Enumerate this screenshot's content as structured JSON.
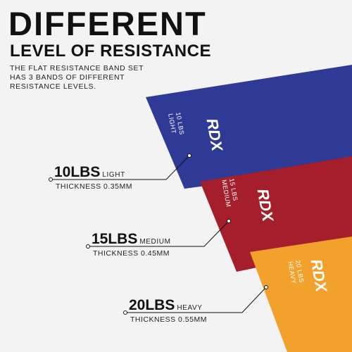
{
  "header": {
    "title": "DIFFERENT",
    "subtitle": "LEVEL OF RESISTANCE",
    "description": [
      "THE FLAT RESISTANCE BAND SET",
      "HAS 3 BANDS OF DIFFERENT",
      "RESISTANCE LEVELS."
    ]
  },
  "brand": "RDX",
  "bands": [
    {
      "weight": "10LBS",
      "level": "LIGHT",
      "thickness": "THICKNESS 0.35MM",
      "band_weight": "10 LBS",
      "band_level": "LIGHT"
    },
    {
      "weight": "15LBS",
      "level": "MEDIUM",
      "thickness": "THICKNESS 0.45MM",
      "band_weight": "15 LBS",
      "band_level": "MEDIUM"
    },
    {
      "weight": "20LBS",
      "level": "HEAVY",
      "thickness": "THICKNESS 0.55MM",
      "band_weight": "20 LBS",
      "band_level": "HEAVY"
    }
  ]
}
